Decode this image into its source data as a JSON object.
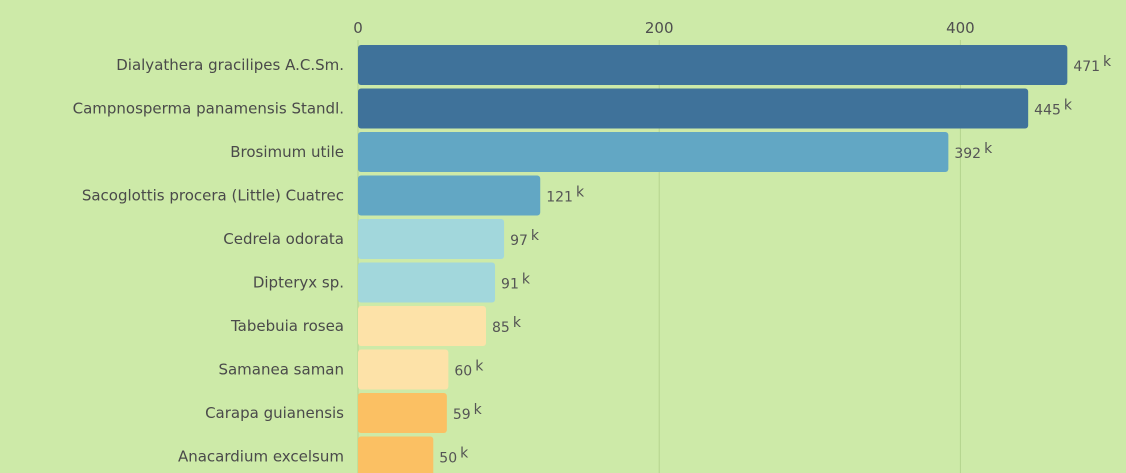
{
  "chart_data": {
    "type": "bar",
    "orientation": "horizontal",
    "title": "",
    "xlabel": "",
    "ylabel": "",
    "xlim": [
      0,
      471
    ],
    "x_ticks": [
      0,
      200,
      400
    ],
    "tick_labels": [
      "0",
      "200",
      "400"
    ],
    "grid": true,
    "legend": "none",
    "value_unit": "k",
    "categories": [
      "Dialyathera gracilipes A.C.Sm.",
      "Campnosperma panamensis Standl.",
      "Brosimum utile",
      "Sacoglottis procera (Little) Cuatrec",
      "Cedrela odorata",
      "Dipteryx sp.",
      "Tabebuia rosea",
      "Samanea saman",
      "Carapa guianensis",
      "Anacardium excelsum"
    ],
    "values": [
      471,
      445,
      392,
      121,
      97,
      91,
      85,
      60,
      59,
      50
    ],
    "bar_colors": [
      "#3f729a",
      "#3f729a",
      "#62a7c4",
      "#62a7c4",
      "#a2d7dc",
      "#a2d7dc",
      "#fde2a8",
      "#fde2a8",
      "#fbc063",
      "#fbc063"
    ]
  },
  "colors": {
    "background": "#cdeaa8",
    "gridline": "#b4d48e"
  }
}
